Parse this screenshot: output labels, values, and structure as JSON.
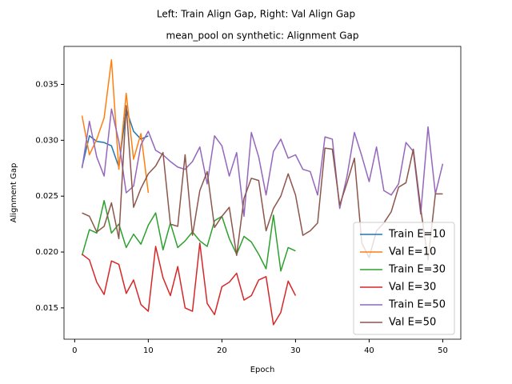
{
  "chart_data": {
    "type": "line",
    "suptitle": "Left: Train Align Gap, Right: Val Align Gap",
    "title": "mean_pool on synthetic: Alignment Gap",
    "xlabel": "Epoch",
    "ylabel": "Alignment Gap",
    "xlim": [
      -1.45,
      52.45
    ],
    "xticks": [
      0,
      10,
      20,
      30,
      40,
      50
    ],
    "ylim": [
      0.0122,
      0.0384
    ],
    "yticks": [
      0.015,
      {
        "value": 0.02,
        "label": "0.020"
      },
      0.025,
      {
        "value": 0.03,
        "label": "0.030"
      },
      0.035
    ],
    "grid": false,
    "legend": "lower right",
    "series": [
      {
        "name": "Train E=10",
        "color": "#1f77b4",
        "x": [
          1,
          2,
          3,
          4,
          5,
          6,
          7,
          8,
          9,
          10
        ],
        "values": [
          0.0276,
          0.0304,
          0.0299,
          0.0298,
          0.0295,
          0.0276,
          0.0328,
          0.0308,
          0.0301,
          0.0304
        ]
      },
      {
        "name": "Val E=10",
        "color": "#ff7f0e",
        "x": [
          1,
          2,
          3,
          4,
          5,
          6,
          7,
          8,
          9,
          10
        ],
        "values": [
          0.0322,
          0.0287,
          0.0301,
          0.032,
          0.0372,
          0.0274,
          0.0342,
          0.0283,
          0.0306,
          0.0253
        ]
      },
      {
        "name": "Train E=30",
        "color": "#2ca02c",
        "x": [
          1,
          2,
          3,
          4,
          5,
          6,
          7,
          8,
          9,
          10,
          11,
          12,
          13,
          14,
          15,
          16,
          17,
          18,
          19,
          20,
          21,
          22,
          23,
          24,
          25,
          26,
          27,
          28,
          29,
          30
        ],
        "values": [
          0.0197,
          0.022,
          0.0217,
          0.0246,
          0.0217,
          0.0225,
          0.0204,
          0.0216,
          0.0207,
          0.0224,
          0.0235,
          0.0202,
          0.0226,
          0.0204,
          0.021,
          0.0218,
          0.021,
          0.0205,
          0.0228,
          0.0232,
          0.0212,
          0.0198,
          0.0214,
          0.0209,
          0.0198,
          0.0185,
          0.0233,
          0.0183,
          0.0204,
          0.0201
        ]
      },
      {
        "name": "Val E=30",
        "color": "#d62728",
        "x": [
          1,
          2,
          3,
          4,
          5,
          6,
          7,
          8,
          9,
          10,
          11,
          12,
          13,
          14,
          15,
          16,
          17,
          18,
          19,
          20,
          21,
          22,
          23,
          24,
          25,
          26,
          27,
          28,
          29,
          30
        ],
        "values": [
          0.0198,
          0.0193,
          0.0173,
          0.0162,
          0.0192,
          0.0189,
          0.0163,
          0.0175,
          0.0153,
          0.0147,
          0.0205,
          0.0177,
          0.0161,
          0.0187,
          0.015,
          0.0147,
          0.0208,
          0.0154,
          0.0144,
          0.0169,
          0.0173,
          0.0181,
          0.0157,
          0.0161,
          0.0175,
          0.0178,
          0.0135,
          0.0146,
          0.0174,
          0.0161
        ]
      },
      {
        "name": "Train E=50",
        "color": "#9467bd",
        "x": [
          1,
          2,
          3,
          4,
          5,
          6,
          7,
          8,
          9,
          10,
          11,
          12,
          13,
          14,
          15,
          16,
          17,
          18,
          19,
          20,
          21,
          22,
          23,
          24,
          25,
          26,
          27,
          28,
          29,
          30,
          31,
          32,
          33,
          34,
          35,
          36,
          37,
          38,
          39,
          40,
          41,
          42,
          43,
          44,
          45,
          46,
          47,
          48,
          49,
          50
        ],
        "values": [
          0.0275,
          0.0317,
          0.0285,
          0.0268,
          0.0328,
          0.0299,
          0.0253,
          0.0259,
          0.0296,
          0.0308,
          0.0291,
          0.0287,
          0.0281,
          0.0276,
          0.0274,
          0.0281,
          0.0294,
          0.0261,
          0.0304,
          0.0295,
          0.0268,
          0.0289,
          0.0232,
          0.0307,
          0.0285,
          0.0251,
          0.029,
          0.0301,
          0.0284,
          0.0287,
          0.0274,
          0.0272,
          0.0251,
          0.0303,
          0.0301,
          0.0239,
          0.0268,
          0.0307,
          0.0286,
          0.0263,
          0.0294,
          0.0255,
          0.0251,
          0.0261,
          0.0298,
          0.029,
          0.0234,
          0.0312,
          0.0252,
          0.0279
        ]
      },
      {
        "name": "Val E=50",
        "color": "#8c564b",
        "x": [
          1,
          2,
          3,
          4,
          5,
          6,
          7,
          8,
          9,
          10,
          11,
          12,
          13,
          14,
          15,
          16,
          17,
          18,
          19,
          20,
          21,
          22,
          23,
          24,
          25,
          26,
          27,
          28,
          29,
          30,
          31,
          32,
          33,
          34,
          35,
          36,
          37,
          38,
          39,
          40,
          41,
          42,
          43,
          44,
          45,
          46,
          47,
          48,
          49,
          50
        ],
        "values": [
          0.0235,
          0.0232,
          0.0218,
          0.0223,
          0.0244,
          0.0212,
          0.0331,
          0.024,
          0.0257,
          0.027,
          0.0277,
          0.0289,
          0.0225,
          0.0223,
          0.0287,
          0.0215,
          0.0255,
          0.0272,
          0.0222,
          0.0232,
          0.024,
          0.0197,
          0.0248,
          0.0266,
          0.0264,
          0.0219,
          0.0239,
          0.025,
          0.027,
          0.0251,
          0.0215,
          0.0219,
          0.0226,
          0.0293,
          0.0292,
          0.0242,
          0.0262,
          0.0284,
          0.0208,
          0.0195,
          0.0219,
          0.0226,
          0.0236,
          0.0258,
          0.0262,
          0.0292,
          0.0239,
          0.0193,
          0.0252,
          0.0252
        ]
      }
    ]
  }
}
